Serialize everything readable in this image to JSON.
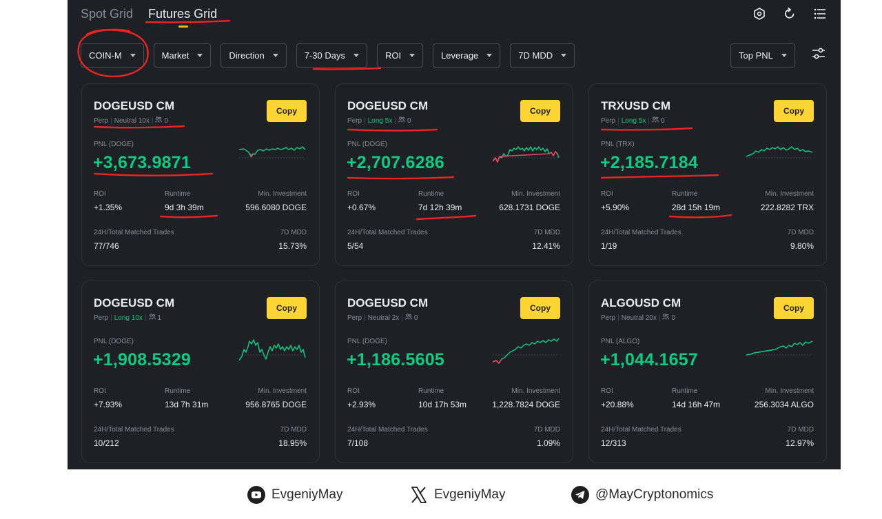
{
  "tabs": [
    "Spot Grid",
    "Futures Grid"
  ],
  "filters": [
    "COIN-M",
    "Market",
    "Direction",
    "7-30 Days",
    "ROI",
    "Leverage",
    "7D MDD"
  ],
  "sort": "Top PNL",
  "labels": {
    "roi": "ROI",
    "runtime": "Runtime",
    "min_investment": "Min. Investment",
    "trades": "24H/Total Matched Trades",
    "mdd": "7D MDD",
    "copy": "Copy"
  },
  "cards": [
    {
      "symbol": "DOGEUSD CM",
      "perp": "Perp",
      "direction": "Neutral 10x",
      "copiers": "0",
      "pnl_label": "PNL (DOGE)",
      "pnl": "+3,673.9871",
      "roi": "+1.35%",
      "runtime": "9d 3h 39m",
      "min_investment": "596.6080 DOGE",
      "trades": "77/746",
      "mdd": "15.73%"
    },
    {
      "symbol": "DOGEUSD CM",
      "perp": "Perp",
      "direction": "Long 5x",
      "copiers": "0",
      "pnl_label": "PNL (DOGE)",
      "pnl": "+2,707.6286",
      "roi": "+0.67%",
      "runtime": "7d 12h 39m",
      "min_investment": "628.1731 DOGE",
      "trades": "5/54",
      "mdd": "12.41%"
    },
    {
      "symbol": "TRXUSD CM",
      "perp": "Perp",
      "direction": "Long 5x",
      "copiers": "0",
      "pnl_label": "PNL (TRX)",
      "pnl": "+2,185.7184",
      "roi": "+5.90%",
      "runtime": "28d 15h 19m",
      "min_investment": "222.8282 TRX",
      "trades": "1/19",
      "mdd": "9.80%"
    },
    {
      "symbol": "DOGEUSD CM",
      "perp": "Perp",
      "direction": "Long 10x",
      "copiers": "1",
      "pnl_label": "PNL (DOGE)",
      "pnl": "+1,908.5329",
      "roi": "+7.93%",
      "runtime": "13d 7h 31m",
      "min_investment": "956.8765 DOGE",
      "trades": "10/212",
      "mdd": "18.95%"
    },
    {
      "symbol": "DOGEUSD CM",
      "perp": "Perp",
      "direction": "Neutral 2x",
      "copiers": "0",
      "pnl_label": "PNL (DOGE)",
      "pnl": "+1,186.5605",
      "roi": "+2.93%",
      "runtime": "10d 17h 53m",
      "min_investment": "1,228.7824 DOGE",
      "trades": "7/108",
      "mdd": "1.09%"
    },
    {
      "symbol": "ALGOUSD CM",
      "perp": "Perp",
      "direction": "Neutral 20x",
      "copiers": "0",
      "pnl_label": "PNL (ALGO)",
      "pnl": "+1,044.1657",
      "roi": "+20.88%",
      "runtime": "14d 16h 47m",
      "min_investment": "256.3034 ALGO",
      "trades": "12/313",
      "mdd": "12.97%"
    }
  ],
  "footer": {
    "youtube": "EvgeniyMay",
    "x": "EvgeniyMay",
    "telegram": "@MayCryptonomics"
  },
  "colors": {
    "background": "#1e2026",
    "positive": "#0ecb81",
    "negative": "#f6465d",
    "accent": "#fcd535",
    "annotation": "#e8261f"
  }
}
